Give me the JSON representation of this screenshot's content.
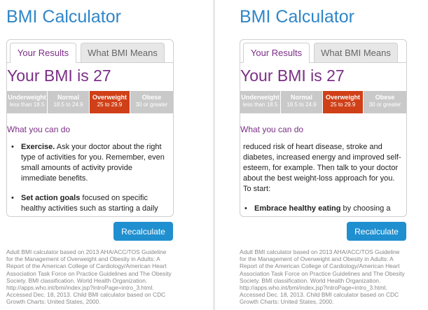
{
  "app_title": "BMI Calculator",
  "tabs": [
    "Your Results",
    "What BMI Means"
  ],
  "bmi_heading": "Your BMI is 27",
  "categories": [
    {
      "name": "Underweight",
      "range": "less than 18.5"
    },
    {
      "name": "Normal",
      "range": "18.5 to 24.9"
    },
    {
      "name": "Overweight",
      "range": "25 to 29.9"
    },
    {
      "name": "Obese",
      "range": "30 or greater"
    }
  ],
  "active_category": "Overweight",
  "colors": {
    "title": "#2f86c8",
    "accent": "#7b2f86",
    "active_segment": "#d04018",
    "button": "#1f8fd0"
  },
  "section_heading": "What you can do",
  "left_panel": {
    "tips": [
      {
        "bold": "Exercise.",
        "text": " Ask your doctor about the right type of activities for you. Remember, even small amounts of activity provide immediate benefits."
      },
      {
        "bold": "Set action goals",
        "text": " focused on specific healthy activities such as starting a daily food and activity diary."
      }
    ]
  },
  "right_panel": {
    "paragraph": "reduced risk of heart disease, stroke and diabetes, increased energy and improved self-esteem, for example. Then talk to your doctor about the best weight-loss approach for you. To start:",
    "tips": [
      {
        "bold": "Embrace healthy eating",
        "text": " by choosing a variety of nutrient-rich foods, including fruits, vegetables and whole grains and small"
      }
    ]
  },
  "recalculate_label": "Recalculate",
  "footnote": "Adult BMI calculator based on 2013 AHA/ACC/TOS Guideline for the Management of Overweight and Obesity in Adults: A Report of the American College of Cardiology/American Heart Association Task Force on Practice Guidelines and The Obesity Society. BMI classification. World Health Organization. http://apps.who.int/bmi/index.jsp?introPage=intro_3.html. Accessed Dec. 18, 2013. Child BMI calculator based on CDC Growth Charts: United States, 2000."
}
